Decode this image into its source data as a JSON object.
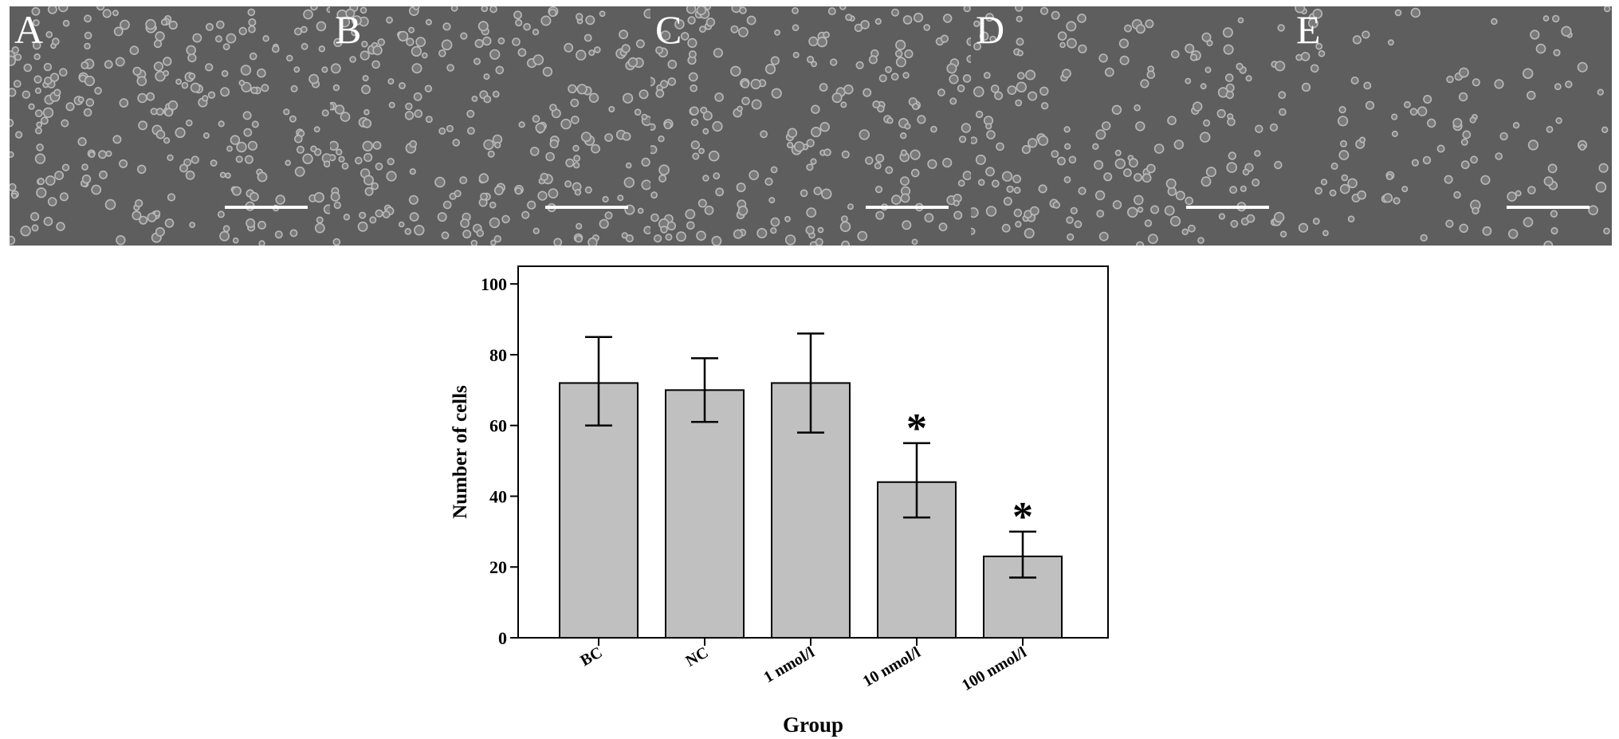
{
  "panels": [
    {
      "label": "A",
      "density": 0.95
    },
    {
      "label": "B",
      "density": 0.92
    },
    {
      "label": "C",
      "density": 0.85
    },
    {
      "label": "D",
      "density": 0.7
    },
    {
      "label": "E",
      "density": 0.45
    }
  ],
  "colors": {
    "bar_fill": "#c0c0c0",
    "bar_stroke": "#000000",
    "micrograph_bg": "#5e5e5e",
    "cell": "#b9b9b9"
  },
  "chart_data": {
    "type": "bar",
    "categories": [
      "BC",
      "NC",
      "1 nmol/l",
      "10 nmol/l",
      "100 nmol/l"
    ],
    "values": [
      72,
      70,
      72,
      44,
      23
    ],
    "error_upper": [
      85,
      79,
      86,
      55,
      30
    ],
    "error_lower": [
      60,
      61,
      58,
      34,
      17
    ],
    "significance": [
      "",
      "",
      "",
      "*",
      "*"
    ],
    "xlabel": "Group",
    "ylabel": "Number of cells",
    "ylim": [
      0,
      105
    ],
    "yticks": [
      0,
      20,
      40,
      60,
      80,
      100
    ],
    "grid": false,
    "legend": "none"
  }
}
